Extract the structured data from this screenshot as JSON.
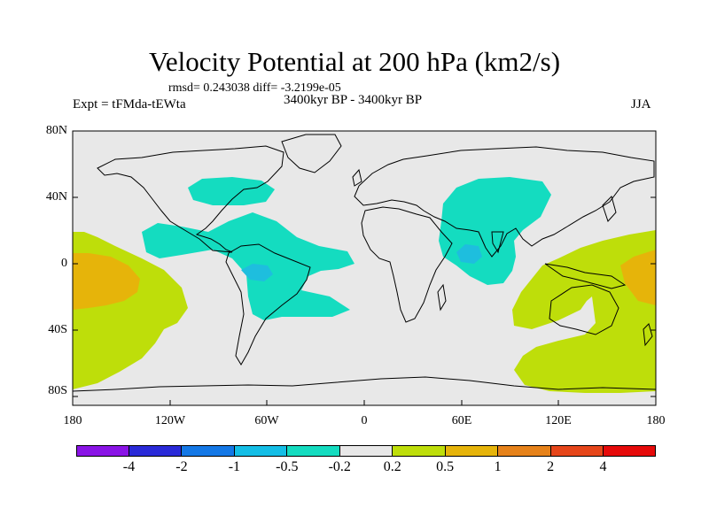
{
  "title": "Velocity Potential at 200 hPa (km2/s)",
  "stats": "rmsd= 0.243038 diff= -3.2199e-05",
  "left_label": "Expt = tFMda-tEWta",
  "center_label": "3400kyr BP - 3400kyr BP",
  "right_label": "JJA",
  "lat_ticks": [
    "80N",
    "40N",
    "0",
    "40S",
    "80S"
  ],
  "lon_ticks": [
    "180",
    "120W",
    "60W",
    "0",
    "60E",
    "120E",
    "180"
  ],
  "colorbar": {
    "colors": [
      "#8a14e6",
      "#2a2ad8",
      "#1478e6",
      "#14bee6",
      "#14dcc0",
      "#e8e8e8",
      "#bede0a",
      "#e6b40a",
      "#e6821a",
      "#e6461a",
      "#e60a0a"
    ],
    "labels": [
      "-4",
      "-2",
      "-1",
      "-0.5",
      "-0.2",
      "0.2",
      "0.5",
      "1",
      "2",
      "4"
    ]
  },
  "colors": {
    "ocean_bg": "#e8e8e8",
    "teal": "#14dcc0",
    "blue": "#1ebede",
    "green": "#bede0a",
    "orange": "#e6b40a",
    "coast": "#000000"
  }
}
